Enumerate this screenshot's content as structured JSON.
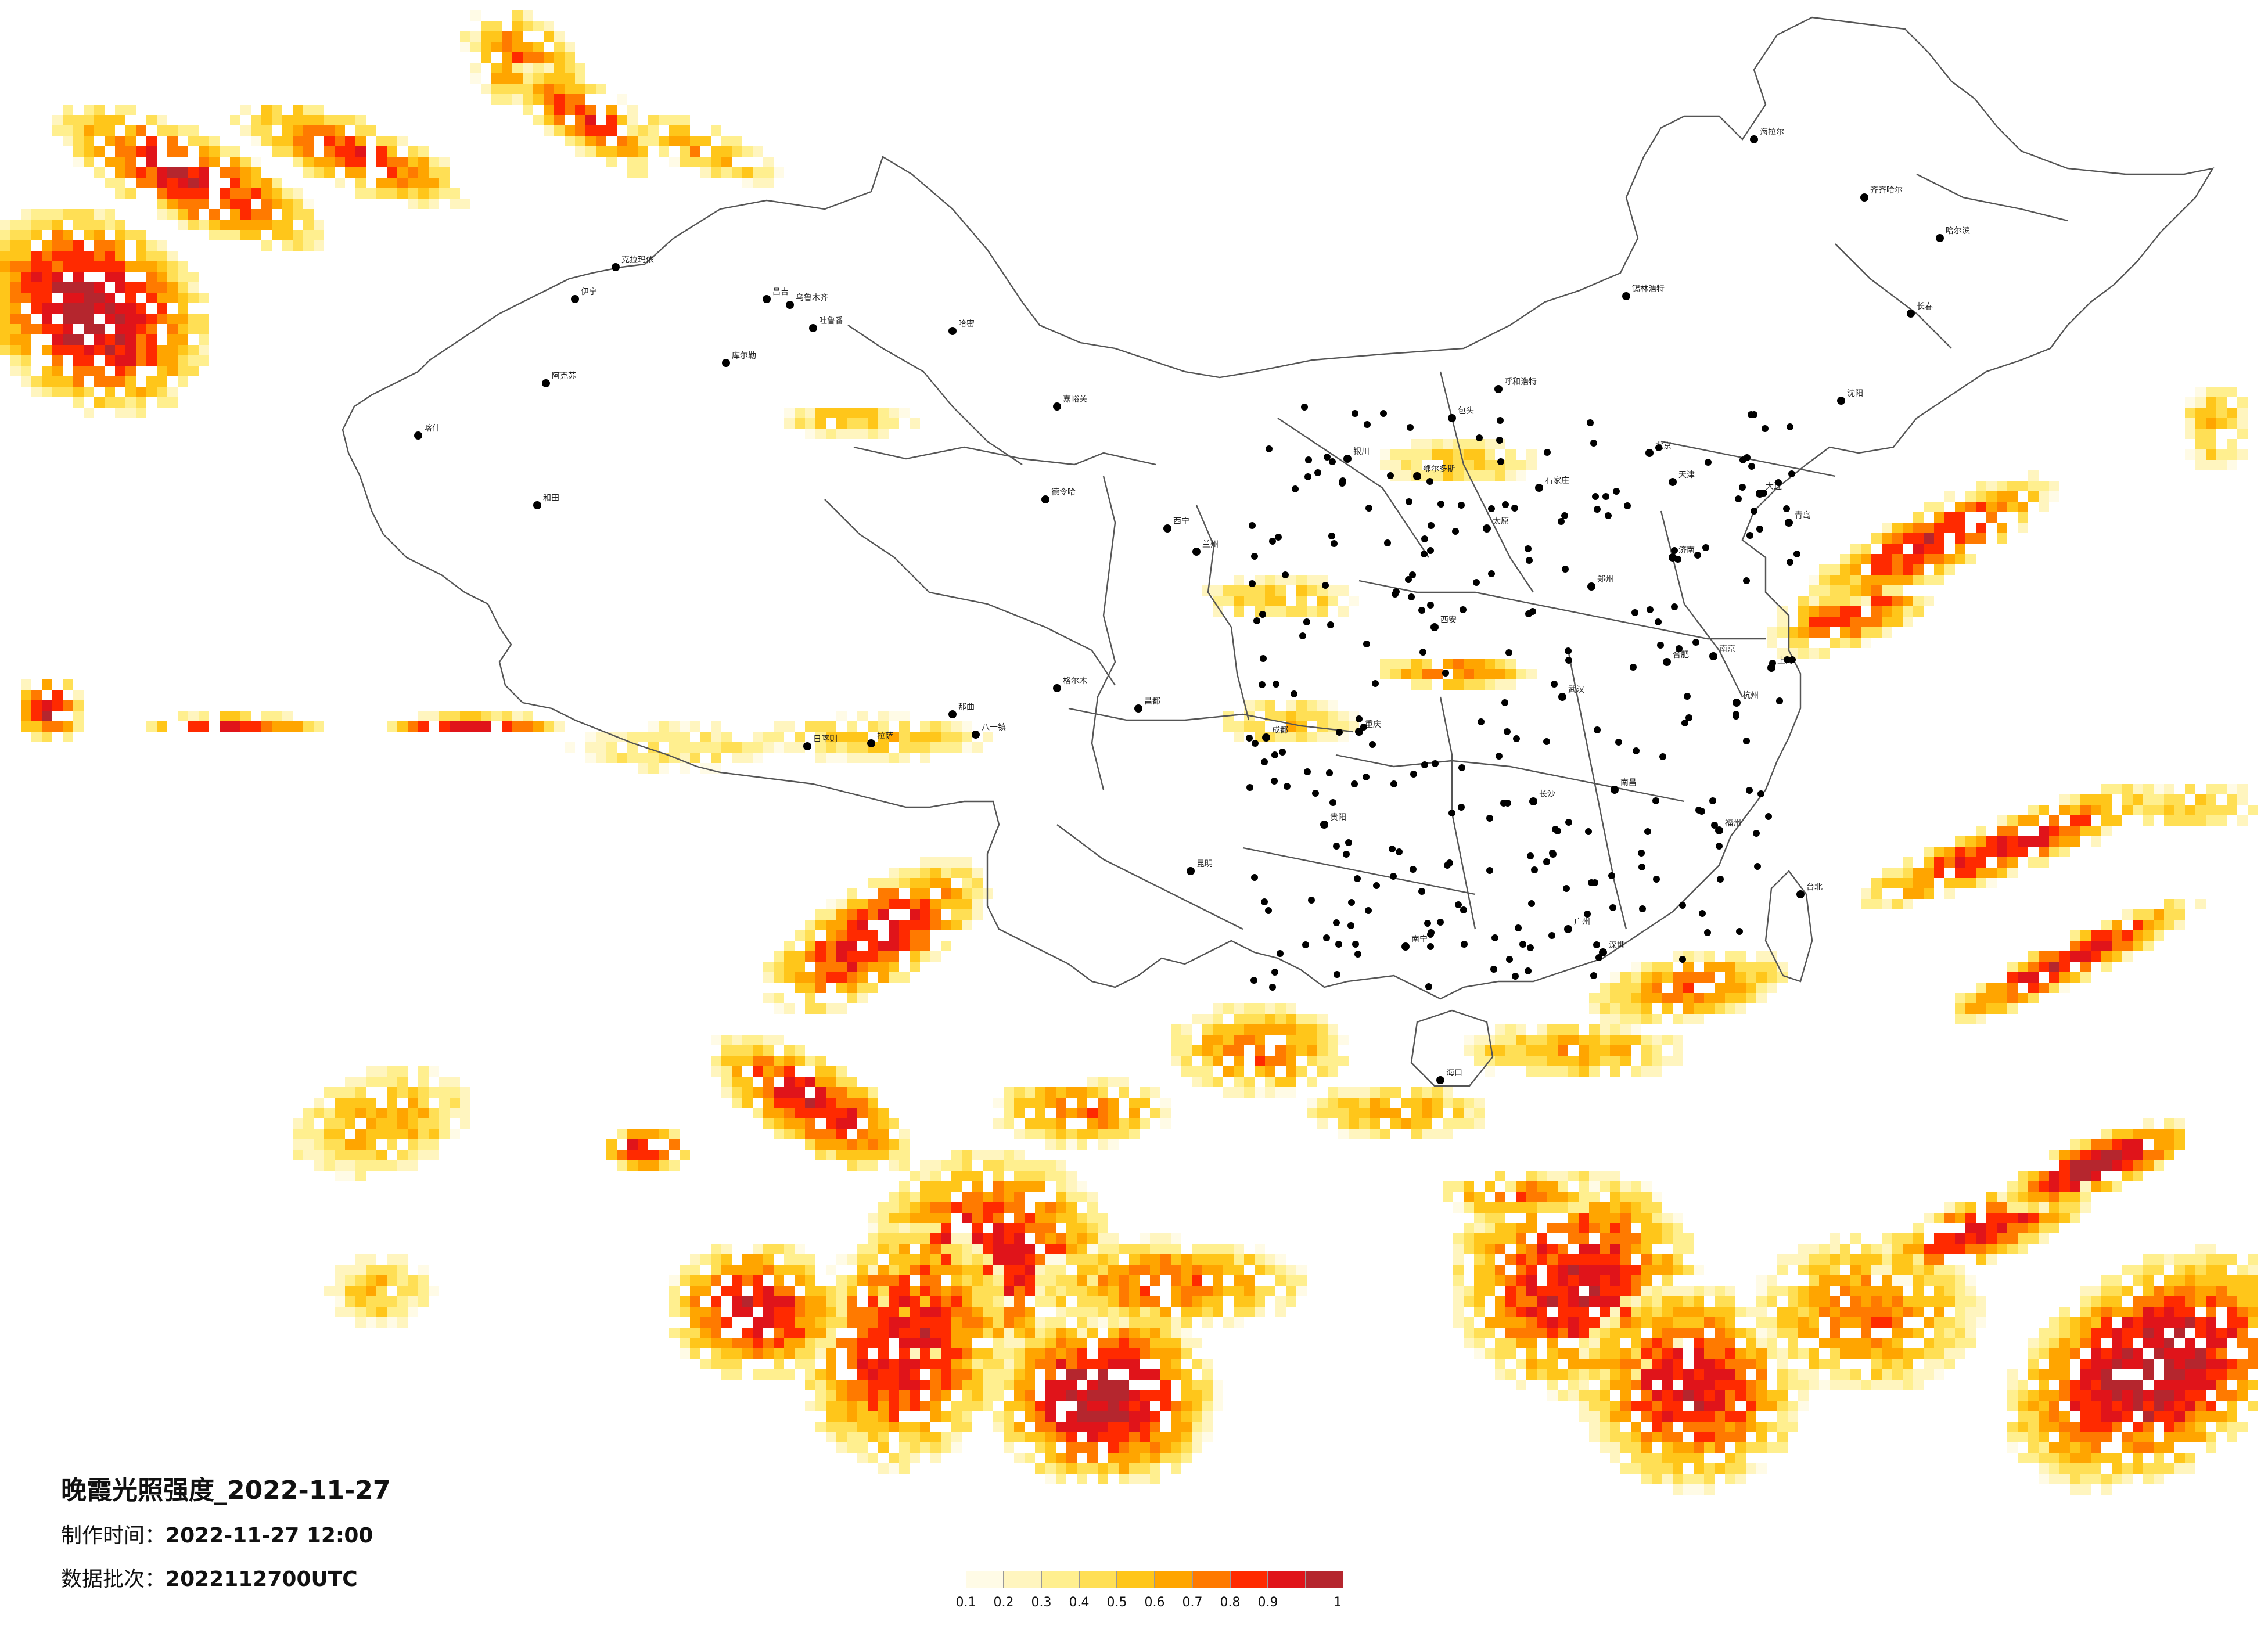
{
  "title": "晚霞光照强度_2022-11-27",
  "made_label": "制作时间：",
  "made_value": "2022-11-27 12:00",
  "batch_label": "数据批次：",
  "batch_value": "2022112700UTC",
  "legend": {
    "colors": [
      "#fffbe6",
      "#fff5bf",
      "#ffef8f",
      "#ffdf55",
      "#ffc61a",
      "#ffa500",
      "#ff7a00",
      "#ff2a00",
      "#e0141a",
      "#b5262e"
    ],
    "ticks": [
      "0.1",
      "0.2",
      "0.3",
      "0.4",
      "0.5",
      "0.6",
      "0.7",
      "0.8",
      "0.9",
      "1"
    ]
  },
  "cities": [
    "克拉玛依",
    "伊宁",
    "昌吉",
    "乌鲁木齐",
    "吐鲁番",
    "哈密",
    "库尔勒",
    "阿克苏",
    "喀什",
    "和田",
    "嘉峪关",
    "德令哈",
    "格尔木",
    "拉萨",
    "日喀则",
    "八一镇",
    "那曲",
    "昌都",
    "西宁",
    "兰州",
    "银川",
    "呼和浩特",
    "包头",
    "鄂尔多斯",
    "太原",
    "石家庄",
    "北京",
    "天津",
    "济南",
    "郑州",
    "西安",
    "成都",
    "重庆",
    "贵阳",
    "昆明",
    "南宁",
    "海口",
    "广州",
    "深圳",
    "长沙",
    "武汉",
    "南昌",
    "合肥",
    "南京",
    "上海",
    "杭州",
    "福州",
    "台北",
    "沈阳",
    "长春",
    "哈尔滨",
    "海拉尔",
    "齐齐哈尔",
    "锡林浩特",
    "大连",
    "青岛"
  ]
}
